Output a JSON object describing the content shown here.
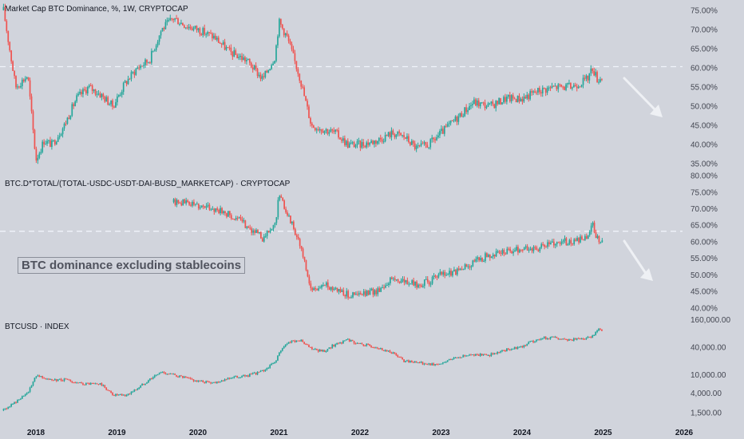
{
  "chart_data": [
    {
      "type": "candlestick",
      "title": "Market Cap BTC Dominance, %, 1W, CRYPTOCAP",
      "scale": "linear",
      "ylim": [
        34,
        76
      ],
      "yticks": [
        "35.00%",
        "40.00%",
        "45.00%",
        "50.00%",
        "55.00%",
        "60.00%",
        "65.00%",
        "70.00%",
        "75.00%"
      ],
      "ytick_values": [
        35,
        40,
        45,
        50,
        55,
        60,
        65,
        70,
        75
      ],
      "dashed_level": 60.3,
      "x": [
        2017.6,
        2017.75,
        2017.9,
        2018.0,
        2018.1,
        2018.2,
        2018.35,
        2018.5,
        2018.65,
        2018.8,
        2018.95,
        2019.1,
        2019.25,
        2019.4,
        2019.55,
        2019.7,
        2019.85,
        2020.0,
        2020.2,
        2020.4,
        2020.6,
        2020.8,
        2020.95,
        2021.0,
        2021.1,
        2021.25,
        2021.4,
        2021.55,
        2021.7,
        2021.85,
        2022.0,
        2022.2,
        2022.4,
        2022.55,
        2022.7,
        2022.85,
        2023.0,
        2023.2,
        2023.4,
        2023.6,
        2023.8,
        2024.0,
        2024.2,
        2024.4,
        2024.6,
        2024.8,
        2024.87,
        2024.93,
        2025.0
      ],
      "values": [
        75,
        55,
        58,
        36,
        41,
        40,
        45,
        52,
        55,
        53,
        50,
        56,
        60,
        62,
        70,
        73,
        71,
        70,
        68,
        64,
        62,
        57,
        63,
        72,
        68,
        58,
        45,
        44,
        43,
        40,
        40,
        41,
        43,
        42,
        39,
        40,
        43,
        47,
        51,
        50,
        52,
        52,
        54,
        55,
        55,
        57,
        60,
        57,
        57.5
      ],
      "arrow": "down-right"
    },
    {
      "type": "candlestick",
      "title": "BTC.D*TOTAL/(TOTAL-USDC-USDT-DAI-BUSD_MARKETCAP) · CRYPTOCAP",
      "scale": "linear",
      "ylim": [
        38.5,
        80.5
      ],
      "yticks": [
        "40.00%",
        "45.00%",
        "50.00%",
        "55.00%",
        "60.00%",
        "65.00%",
        "70.00%",
        "75.00%",
        "80.00%"
      ],
      "ytick_values": [
        40,
        45,
        50,
        55,
        60,
        65,
        70,
        75,
        80
      ],
      "dashed_level": 63.2,
      "x": [
        2019.7,
        2019.85,
        2020.0,
        2020.2,
        2020.4,
        2020.6,
        2020.8,
        2020.95,
        2021.0,
        2021.1,
        2021.25,
        2021.4,
        2021.55,
        2021.7,
        2021.85,
        2022.0,
        2022.2,
        2022.4,
        2022.55,
        2022.7,
        2022.85,
        2023.0,
        2023.2,
        2023.4,
        2023.6,
        2023.8,
        2024.0,
        2024.2,
        2024.4,
        2024.6,
        2024.8,
        2024.87,
        2024.93,
        2025.0
      ],
      "values": [
        72,
        72,
        71,
        70,
        68,
        65,
        61,
        65,
        74,
        69,
        60,
        45,
        47,
        46,
        44,
        44,
        45,
        49,
        48,
        47,
        48,
        50,
        51,
        54,
        56,
        57,
        58,
        58,
        60,
        60,
        61,
        65,
        61,
        60.5
      ],
      "annotation": "BTC dominance excluding stablecoins",
      "arrow": "down-right"
    },
    {
      "type": "candlestick",
      "title": "BTCUSD · INDEX",
      "scale": "log",
      "ylim": [
        1100,
        190000
      ],
      "yticks": [
        "1,500.00",
        "4,000.00",
        "10,000.00",
        "40,000.00",
        "160,000.00"
      ],
      "ytick_values": [
        1500,
        4000,
        10000,
        40000,
        160000
      ],
      "x": [
        2017.6,
        2017.75,
        2017.9,
        2018.0,
        2018.1,
        2018.2,
        2018.35,
        2018.5,
        2018.65,
        2018.8,
        2018.95,
        2019.1,
        2019.25,
        2019.4,
        2019.55,
        2019.7,
        2019.85,
        2020.0,
        2020.2,
        2020.4,
        2020.6,
        2020.8,
        2020.95,
        2021.0,
        2021.1,
        2021.25,
        2021.4,
        2021.55,
        2021.7,
        2021.85,
        2022.0,
        2022.2,
        2022.4,
        2022.55,
        2022.7,
        2022.85,
        2023.0,
        2023.2,
        2023.4,
        2023.6,
        2023.8,
        2024.0,
        2024.2,
        2024.4,
        2024.6,
        2024.8,
        2024.87,
        2024.93,
        2025.0
      ],
      "values": [
        1700,
        2600,
        4000,
        10000,
        9000,
        7500,
        8000,
        6500,
        6400,
        6300,
        3700,
        3500,
        5000,
        8000,
        11500,
        10000,
        8500,
        7200,
        6800,
        8700,
        9500,
        12000,
        19000,
        29000,
        50000,
        58000,
        36000,
        33000,
        47000,
        57000,
        47000,
        40000,
        30000,
        20000,
        19500,
        16800,
        17000,
        25000,
        28000,
        27000,
        35000,
        42000,
        62000,
        65000,
        58000,
        62000,
        70000,
        100000,
        95000
      ]
    }
  ],
  "x_axis": {
    "labels": [
      "2018",
      "2019",
      "2020",
      "2021",
      "2022",
      "2023",
      "2024",
      "2025",
      "2026"
    ],
    "values": [
      2018,
      2019,
      2020,
      2021,
      2022,
      2023,
      2024,
      2025,
      2026
    ]
  },
  "colors": {
    "background": "#d1d4dc",
    "up": "#26a69a",
    "down": "#ef5350",
    "text": "#131722",
    "dashed": "#f0f3fa"
  }
}
